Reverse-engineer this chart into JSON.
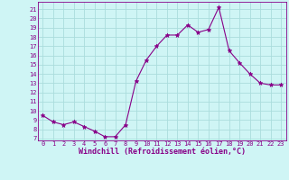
{
  "x": [
    0,
    1,
    2,
    3,
    4,
    5,
    6,
    7,
    8,
    9,
    10,
    11,
    12,
    13,
    14,
    15,
    16,
    17,
    18,
    19,
    20,
    21,
    22,
    23
  ],
  "y": [
    9.5,
    8.8,
    8.5,
    8.8,
    8.3,
    7.8,
    7.2,
    7.2,
    8.5,
    13.2,
    15.5,
    17.0,
    18.2,
    18.2,
    19.3,
    18.5,
    18.8,
    21.2,
    16.5,
    15.2,
    14.0,
    13.0,
    12.8,
    12.8
  ],
  "line_color": "#880088",
  "marker": "*",
  "marker_size": 3.5,
  "xlabel": "Windchill (Refroidissement éolien,°C)",
  "ylabel_ticks": [
    7,
    8,
    9,
    10,
    11,
    12,
    13,
    14,
    15,
    16,
    17,
    18,
    19,
    20,
    21
  ],
  "ylim": [
    6.8,
    21.8
  ],
  "xlim": [
    -0.5,
    23.5
  ],
  "bg_color": "#cff5f5",
  "grid_color": "#aadddd",
  "tick_color": "#880088",
  "xlabel_color": "#880088",
  "font_name": "monospace",
  "tick_fontsize": 5.0,
  "xlabel_fontsize": 6.0
}
